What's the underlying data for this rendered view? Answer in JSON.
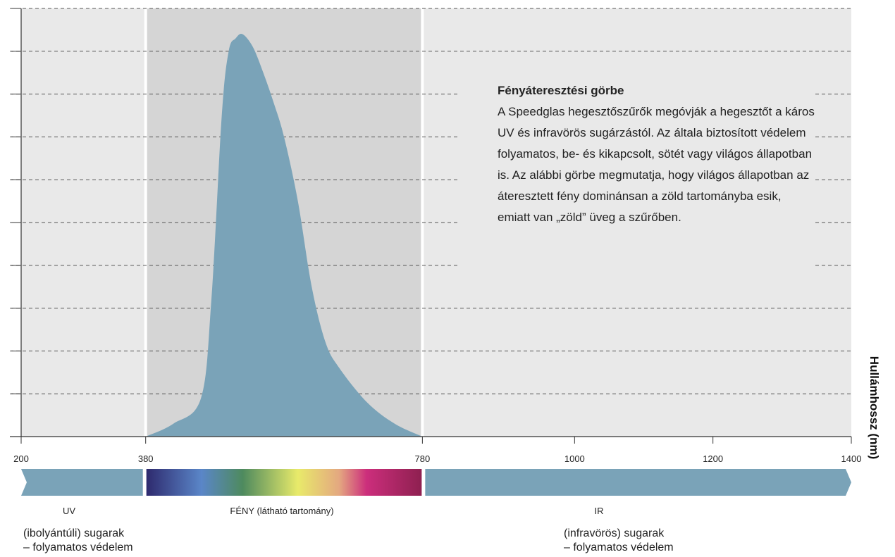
{
  "chart_data": {
    "type": "area",
    "title": "",
    "xlabel": "",
    "ylabel": "Hullámhossz (nm)",
    "x_ticks": [
      200,
      380,
      780,
      1000,
      1200,
      1400
    ],
    "x_range": [
      200,
      1400
    ],
    "y_range": [
      0,
      100
    ],
    "grid": true,
    "regions": [
      {
        "name": "UV",
        "from": 200,
        "to": 380
      },
      {
        "name": "FÉNY",
        "from": 380,
        "to": 780
      },
      {
        "name": "IR",
        "from": 780,
        "to": 1400
      }
    ],
    "series": [
      {
        "name": "",
        "x": [
          380,
          420,
          460,
          475,
          490,
          500,
          510,
          520,
          535,
          550,
          565,
          580,
          600,
          620,
          640,
          660,
          700,
          740,
          780
        ],
        "y": [
          0,
          3,
          9,
          32,
          75,
          90,
          93,
          94,
          91,
          85,
          78,
          70,
          55,
          35,
          22,
          16,
          8,
          3,
          0
        ]
      }
    ]
  },
  "info": {
    "title": "Fényáteresztési görbe",
    "text": "A Speedglas hegesztőszűrők megóvják a hegesztőt a káros UV és infravörös sugárzástól. Az általa biztosított védelem folyamatos, be- és kikapcsolt, sötét vagy világos állapotban is. Az alábbi görbe megmutatja, hogy világos állapotban az áteresztett fény dominánsan a zöld tartományba esik, emiatt van „zöld” üveg a szűrőben."
  },
  "bands": {
    "uv": {
      "label": "UV",
      "line1": "(ibolyántúli) sugarak",
      "line2": "– folyamatos védelem"
    },
    "light": {
      "label": "FÉNY (látható tartomány)"
    },
    "ir": {
      "label": "IR",
      "line1": "(infravörös) sugarak",
      "line2": "– folyamatos védelem"
    }
  },
  "colors": {
    "curve": "#7aa3b8",
    "band_arrow": "#7aa3b8",
    "region_uv_ir": "#e9e9e9",
    "region_light": "#d5d5d5",
    "grid": "#555555"
  }
}
